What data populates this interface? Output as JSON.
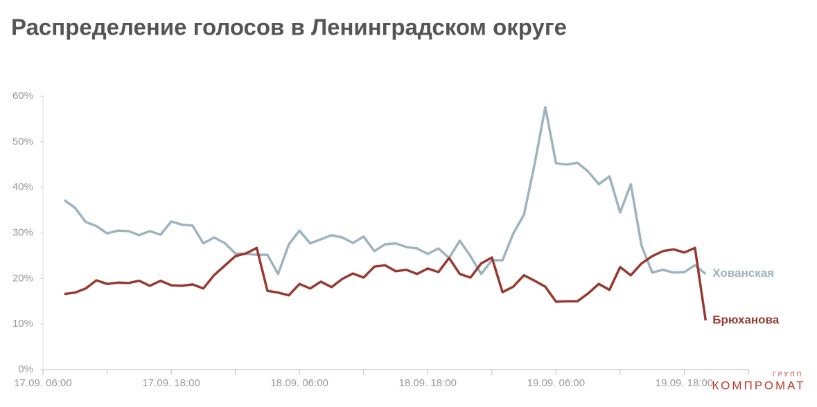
{
  "chart_data": {
    "type": "line",
    "title": "Распределение голосов в Ленинградском округе",
    "x": [
      "17.09. 08:00",
      "17.09. 09:00",
      "17.09. 10:00",
      "17.09. 11:00",
      "17.09. 12:00",
      "17.09. 13:00",
      "17.09. 14:00",
      "17.09. 15:00",
      "17.09. 16:00",
      "17.09. 17:00",
      "17.09. 18:00",
      "17.09. 19:00",
      "17.09. 20:00",
      "17.09. 21:00",
      "17.09. 22:00",
      "17.09. 23:00",
      "18.09. 00:00",
      "18.09. 01:00",
      "18.09. 02:00",
      "18.09. 03:00",
      "18.09. 04:00",
      "18.09. 05:00",
      "18.09. 06:00",
      "18.09. 07:00",
      "18.09. 08:00",
      "18.09. 09:00",
      "18.09. 10:00",
      "18.09. 11:00",
      "18.09. 12:00",
      "18.09. 13:00",
      "18.09. 14:00",
      "18.09. 15:00",
      "18.09. 16:00",
      "18.09. 17:00",
      "18.09. 18:00",
      "18.09. 19:00",
      "18.09. 20:00",
      "18.09. 21:00",
      "18.09. 22:00",
      "18.09. 23:00",
      "19.09. 00:00",
      "19.09. 01:00",
      "19.09. 02:00",
      "19.09. 03:00",
      "19.09. 04:00",
      "19.09. 05:00",
      "19.09. 06:00",
      "19.09. 07:00",
      "19.09. 08:00",
      "19.09. 09:00",
      "19.09. 10:00",
      "19.09. 11:00",
      "19.09. 12:00",
      "19.09. 13:00",
      "19.09. 14:00",
      "19.09. 15:00",
      "19.09. 16:00",
      "19.09. 17:00",
      "19.09. 18:00",
      "19.09. 19:00",
      "19.09. 20:00"
    ],
    "series": [
      {
        "name": "Хованская",
        "color": "#9fb3be",
        "values": [
          37.2,
          35.5,
          32.4,
          31.5,
          29.9,
          30.5,
          30.4,
          29.5,
          30.4,
          29.6,
          32.5,
          31.8,
          31.6,
          27.7,
          29.0,
          27.8,
          25.5,
          25.4,
          25.2,
          25.2,
          21.0,
          27.5,
          30.5,
          27.7,
          28.6,
          29.5,
          29.0,
          27.8,
          29.2,
          26.0,
          27.5,
          27.7,
          26.9,
          26.6,
          25.4,
          26.6,
          24.5,
          28.3,
          24.9,
          21.0,
          24.0,
          24.0,
          29.9,
          34.0,
          45.1,
          57.6,
          45.3,
          45.0,
          45.4,
          43.5,
          40.7,
          42.4,
          34.5,
          40.7,
          27.2,
          21.3,
          21.9,
          21.3,
          21.4,
          22.9,
          21.0
        ]
      },
      {
        "name": "Брюханова",
        "color": "#963a31",
        "values": [
          16.6,
          16.9,
          17.8,
          19.6,
          18.8,
          19.1,
          19.0,
          19.5,
          18.4,
          19.5,
          18.5,
          18.4,
          18.7,
          17.8,
          20.7,
          22.8,
          24.9,
          25.5,
          26.7,
          17.3,
          16.9,
          16.3,
          18.8,
          17.8,
          19.3,
          18.1,
          19.9,
          21.1,
          20.2,
          22.6,
          22.9,
          21.6,
          21.9,
          21.0,
          22.2,
          21.4,
          24.5,
          21.0,
          20.2,
          23.3,
          24.6,
          17.0,
          18.2,
          20.7,
          19.5,
          18.2,
          14.9,
          15.0,
          15.0,
          16.7,
          18.8,
          17.5,
          22.5,
          20.7,
          23.3,
          24.9,
          26.0,
          26.4,
          25.7,
          26.7,
          10.8
        ]
      }
    ],
    "xlim": [
      "17.09. 06:00",
      "20.09. 00:00"
    ],
    "xticks": [
      "17.09. 06:00",
      "17.09. 18:00",
      "18.09. 06:00",
      "18.09. 18:00",
      "19.09. 06:00",
      "19.09. 18:00"
    ],
    "ylim": [
      0,
      60
    ],
    "yticks": [
      {
        "value": 0,
        "label": "0%"
      },
      {
        "value": 10,
        "label": "10%"
      },
      {
        "value": 20,
        "label": "20%"
      },
      {
        "value": 30,
        "label": "30%"
      },
      {
        "value": 40,
        "label": "40%"
      },
      {
        "value": 50,
        "label": "50%"
      },
      {
        "value": 60,
        "label": "60%"
      }
    ],
    "watermark": {
      "small": "ГРУПП",
      "big": "КОМПРОМАТ"
    }
  }
}
